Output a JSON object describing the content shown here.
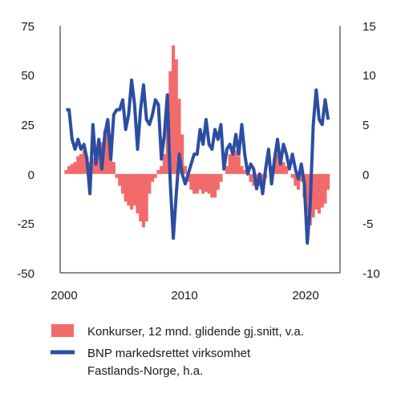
{
  "chart_data": {
    "type": "bar+line",
    "title": "",
    "xlabel": "",
    "x_ticks": [
      "2000",
      "2010",
      "2020"
    ],
    "x_range": [
      1999.5,
      2023.0
    ],
    "y_left": {
      "ticks": [
        "75",
        "50",
        "25",
        "0",
        "-25",
        "-50"
      ],
      "range": [
        -50,
        75
      ]
    },
    "y_right": {
      "ticks": [
        "15",
        "10",
        "5",
        "0",
        "-5",
        "-10"
      ],
      "range": [
        -10,
        15
      ]
    },
    "grid": false,
    "legend_position": "bottom",
    "series": [
      {
        "name": "Konkurser, 12 mnd. glidende gj.snitt, v.a.",
        "type": "bar",
        "axis": "left",
        "color": "#f26b6b",
        "x": [
          2000.0,
          2000.25,
          2000.5,
          2000.75,
          2001.0,
          2001.25,
          2001.5,
          2001.75,
          2002.0,
          2002.25,
          2002.5,
          2002.75,
          2003.0,
          2003.25,
          2003.5,
          2003.75,
          2004.0,
          2004.25,
          2004.5,
          2004.75,
          2005.0,
          2005.25,
          2005.5,
          2005.75,
          2006.0,
          2006.25,
          2006.5,
          2006.75,
          2007.0,
          2007.25,
          2007.5,
          2007.75,
          2008.0,
          2008.25,
          2008.5,
          2008.75,
          2009.0,
          2009.25,
          2009.5,
          2009.75,
          2010.0,
          2010.25,
          2010.5,
          2010.75,
          2011.0,
          2011.25,
          2011.5,
          2011.75,
          2012.0,
          2012.25,
          2012.5,
          2012.75,
          2013.0,
          2013.25,
          2013.5,
          2013.75,
          2014.0,
          2014.25,
          2014.5,
          2014.75,
          2015.0,
          2015.25,
          2015.5,
          2015.75,
          2016.0,
          2016.25,
          2016.5,
          2016.75,
          2017.0,
          2017.25,
          2017.5,
          2017.75,
          2018.0,
          2018.25,
          2018.5,
          2018.75,
          2019.0,
          2019.25,
          2019.5,
          2019.75,
          2020.0,
          2020.25,
          2020.5,
          2020.75,
          2021.0,
          2021.25,
          2021.5,
          2021.75,
          2022.0
        ],
        "values": [
          2,
          4,
          5,
          6,
          9,
          10,
          12,
          9,
          6,
          8,
          10,
          12,
          16,
          22,
          27,
          20,
          6,
          -2,
          -6,
          -10,
          -14,
          -16,
          -18,
          -16,
          -20,
          -24,
          -27,
          -24,
          -10,
          -4,
          -2,
          2,
          4,
          10,
          28,
          52,
          65,
          58,
          38,
          20,
          4,
          -4,
          -8,
          -10,
          -10,
          -8,
          -10,
          -9,
          -10,
          -12,
          -12,
          -8,
          -4,
          0,
          4,
          10,
          14,
          12,
          9,
          4,
          2,
          0,
          -4,
          -6,
          -8,
          -6,
          -4,
          -2,
          0,
          4,
          8,
          10,
          8,
          6,
          4,
          0,
          -2,
          -6,
          -8,
          -4,
          -12,
          -20,
          -26,
          -22,
          -18,
          -20,
          -17,
          -15,
          -8
        ]
      },
      {
        "name": "BNP markedsrettet virksomhet",
        "name_line2": "Fastlands-Norge, h.a.",
        "type": "line",
        "axis": "right",
        "color": "#2b4ea2",
        "x": [
          2000.0,
          2000.25,
          2000.5,
          2000.75,
          2001.0,
          2001.25,
          2001.5,
          2001.75,
          2002.0,
          2002.25,
          2002.5,
          2002.75,
          2003.0,
          2003.25,
          2003.5,
          2003.75,
          2004.0,
          2004.25,
          2004.5,
          2004.75,
          2005.0,
          2005.25,
          2005.5,
          2005.75,
          2006.0,
          2006.25,
          2006.5,
          2006.75,
          2007.0,
          2007.25,
          2007.5,
          2007.75,
          2008.0,
          2008.25,
          2008.5,
          2008.75,
          2009.0,
          2009.25,
          2009.5,
          2009.75,
          2010.0,
          2010.25,
          2010.5,
          2010.75,
          2011.0,
          2011.25,
          2011.5,
          2011.75,
          2012.0,
          2012.25,
          2012.5,
          2012.75,
          2013.0,
          2013.25,
          2013.5,
          2013.75,
          2014.0,
          2014.25,
          2014.5,
          2014.75,
          2015.0,
          2015.25,
          2015.5,
          2015.75,
          2016.0,
          2016.25,
          2016.5,
          2016.75,
          2017.0,
          2017.25,
          2017.5,
          2017.75,
          2018.0,
          2018.25,
          2018.5,
          2018.75,
          2019.0,
          2019.25,
          2019.5,
          2019.75,
          2020.0,
          2020.25,
          2020.5,
          2020.75,
          2021.0,
          2021.25,
          2021.5,
          2021.75,
          2022.0
        ],
        "values": [
          6.5,
          6.5,
          3.5,
          2.5,
          3.5,
          2.5,
          3.0,
          1.5,
          -2.0,
          5.0,
          1.0,
          3.5,
          0.5,
          4.0,
          5.5,
          1.5,
          6.0,
          6.5,
          6.5,
          7.5,
          4.5,
          6.0,
          9.5,
          7.0,
          2.5,
          6.5,
          9.0,
          5.5,
          5.0,
          6.0,
          7.5,
          7.0,
          1.5,
          4.0,
          8.0,
          -1.0,
          -6.5,
          -2.0,
          2.0,
          0.0,
          -1.0,
          0.0,
          1.0,
          2.0,
          2.0,
          4.5,
          3.0,
          5.5,
          3.0,
          2.5,
          4.5,
          3.5,
          5.0,
          0.5,
          2.5,
          3.0,
          2.0,
          4.0,
          2.0,
          5.0,
          2.0,
          0.0,
          1.0,
          0.5,
          -1.5,
          0.0,
          -2.0,
          0.5,
          2.5,
          -1.0,
          1.5,
          3.5,
          1.0,
          3.0,
          2.0,
          0.5,
          2.0,
          0.5,
          -0.5,
          1.0,
          -1.0,
          -7.0,
          -3.0,
          5.0,
          8.5,
          5.5,
          5.0,
          7.5,
          5.5
        ]
      }
    ]
  },
  "legend": {
    "bar_label": "Konkurser, 12 mnd. glidende gj.snitt, v.a.",
    "line_label_1": "BNP markedsrettet virksomhet",
    "line_label_2": "Fastlands-Norge, h.a."
  }
}
